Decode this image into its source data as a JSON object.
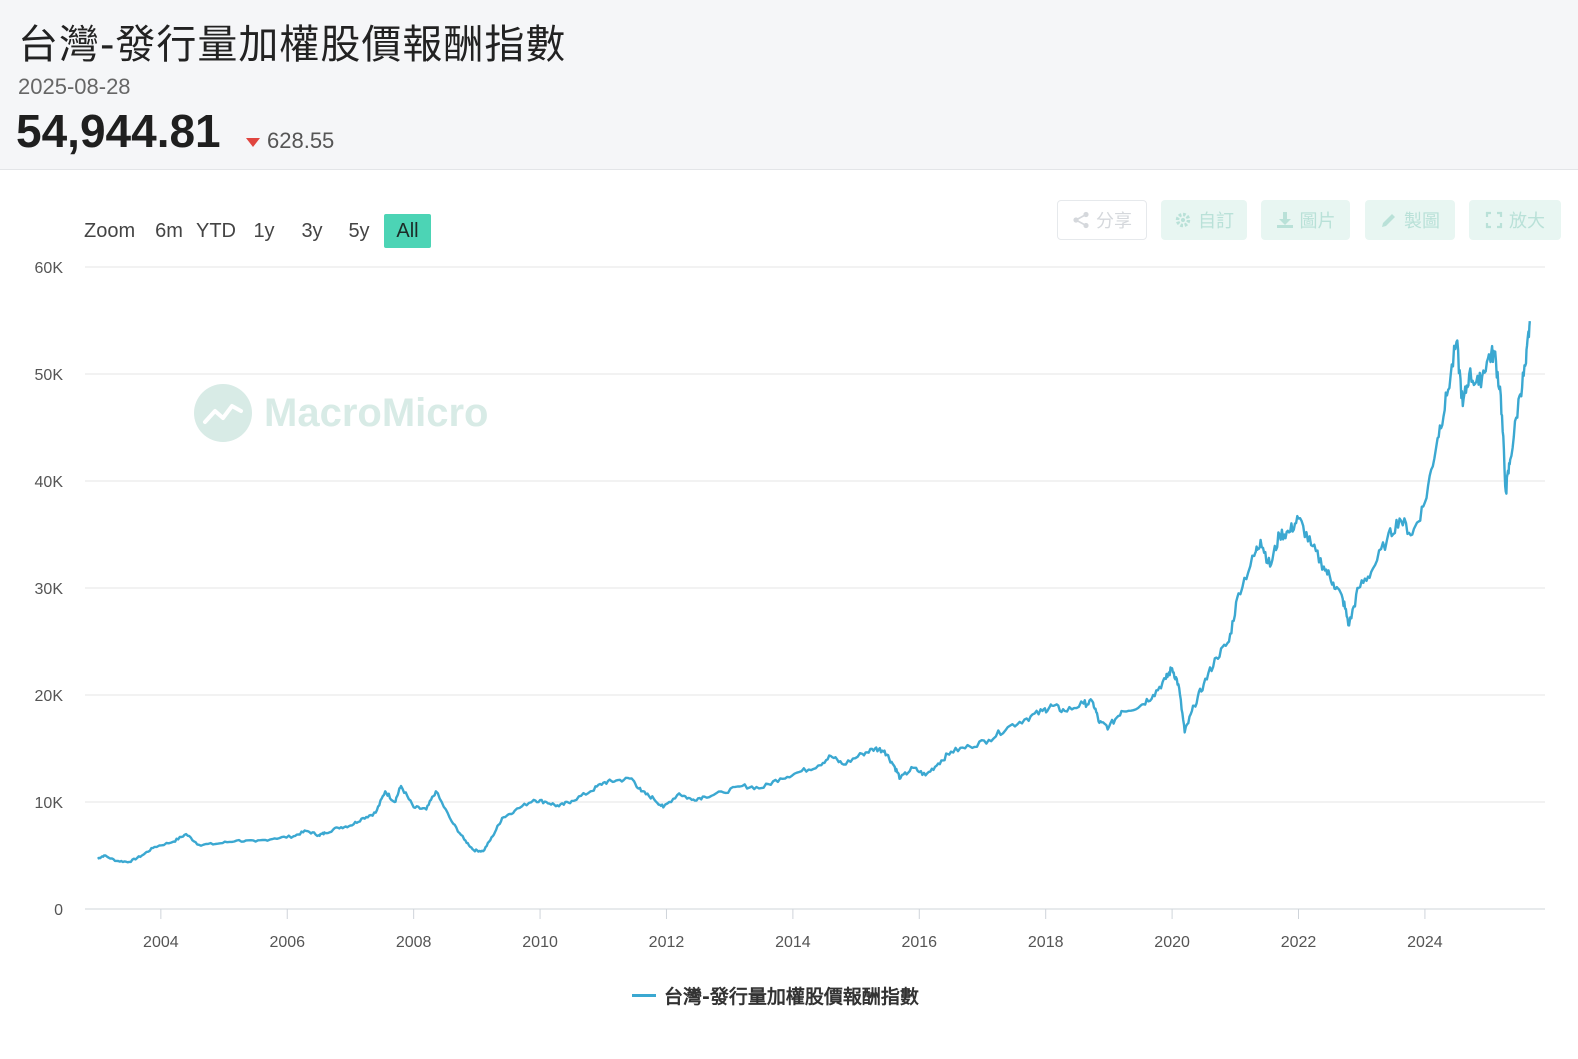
{
  "header": {
    "title": "台灣-發行量加權股價報酬指數",
    "date": "2025-08-28",
    "value": "54,944.81",
    "change": "628.55",
    "change_direction": "down"
  },
  "range_selector": {
    "zoom_label": "Zoom",
    "buttons": [
      "6m",
      "YTD",
      "1y",
      "3y",
      "5y",
      "All"
    ],
    "active": "All"
  },
  "toolbar": {
    "share": "分享",
    "customize": "自訂",
    "image": "圖片",
    "draw": "製圖",
    "enlarge": "放大"
  },
  "watermark": "MacroMicro",
  "colors": {
    "series": "#3ba8d1",
    "accent": "#4cd4b5",
    "down": "#e0453f"
  },
  "chart_data": {
    "type": "line",
    "title": "",
    "xlabel": "",
    "ylabel": "",
    "ylim": [
      0,
      60000
    ],
    "yticks": [
      0,
      10000,
      20000,
      30000,
      40000,
      50000,
      60000
    ],
    "ytick_labels": [
      "0",
      "10K",
      "20K",
      "30K",
      "40K",
      "50K",
      "60K"
    ],
    "xlim": [
      2002.8,
      2025.9
    ],
    "xticks": [
      2004,
      2006,
      2008,
      2010,
      2012,
      2014,
      2016,
      2018,
      2020,
      2022,
      2024
    ],
    "xtick_labels": [
      "2004",
      "2006",
      "2008",
      "2010",
      "2012",
      "2014",
      "2016",
      "2018",
      "2020",
      "2022",
      "2024"
    ],
    "grid": "horizontal",
    "legend": "bottom-center",
    "series": [
      {
        "name": "台灣-發行量加權股價報酬指數",
        "points": [
          [
            2003.0,
            4700
          ],
          [
            2003.1,
            5000
          ],
          [
            2003.3,
            4500
          ],
          [
            2003.5,
            4400
          ],
          [
            2003.7,
            5000
          ],
          [
            2003.9,
            5800
          ],
          [
            2004.2,
            6300
          ],
          [
            2004.4,
            7000
          ],
          [
            2004.6,
            6000
          ],
          [
            2004.9,
            6100
          ],
          [
            2005.2,
            6400
          ],
          [
            2005.5,
            6300
          ],
          [
            2005.8,
            6600
          ],
          [
            2006.1,
            6800
          ],
          [
            2006.3,
            7300
          ],
          [
            2006.5,
            6900
          ],
          [
            2006.6,
            7100
          ],
          [
            2006.8,
            7600
          ],
          [
            2007.0,
            7800
          ],
          [
            2007.2,
            8500
          ],
          [
            2007.4,
            9000
          ],
          [
            2007.55,
            11000
          ],
          [
            2007.7,
            10000
          ],
          [
            2007.8,
            11500
          ],
          [
            2008.0,
            9500
          ],
          [
            2008.2,
            9300
          ],
          [
            2008.35,
            11000
          ],
          [
            2008.6,
            8200
          ],
          [
            2008.8,
            6500
          ],
          [
            2008.95,
            5500
          ],
          [
            2009.1,
            5400
          ],
          [
            2009.25,
            6800
          ],
          [
            2009.4,
            8500
          ],
          [
            2009.6,
            9200
          ],
          [
            2009.9,
            10200
          ],
          [
            2010.1,
            10000
          ],
          [
            2010.3,
            9600
          ],
          [
            2010.5,
            10100
          ],
          [
            2010.8,
            11000
          ],
          [
            2011.0,
            11800
          ],
          [
            2011.2,
            12000
          ],
          [
            2011.45,
            12200
          ],
          [
            2011.6,
            11000
          ],
          [
            2011.8,
            10300
          ],
          [
            2011.95,
            9500
          ],
          [
            2012.2,
            10800
          ],
          [
            2012.4,
            10200
          ],
          [
            2012.6,
            10500
          ],
          [
            2012.9,
            10900
          ],
          [
            2013.2,
            11500
          ],
          [
            2013.5,
            11300
          ],
          [
            2013.8,
            12200
          ],
          [
            2014.1,
            12800
          ],
          [
            2014.4,
            13400
          ],
          [
            2014.6,
            14300
          ],
          [
            2014.8,
            13500
          ],
          [
            2015.1,
            14500
          ],
          [
            2015.3,
            15000
          ],
          [
            2015.45,
            14800
          ],
          [
            2015.6,
            13400
          ],
          [
            2015.7,
            12200
          ],
          [
            2015.9,
            13200
          ],
          [
            2016.1,
            12500
          ],
          [
            2016.3,
            13600
          ],
          [
            2016.5,
            14700
          ],
          [
            2016.8,
            15200
          ],
          [
            2017.1,
            15800
          ],
          [
            2017.4,
            17000
          ],
          [
            2017.7,
            17800
          ],
          [
            2017.95,
            18500
          ],
          [
            2018.1,
            19000
          ],
          [
            2018.3,
            18500
          ],
          [
            2018.6,
            19200
          ],
          [
            2018.75,
            19300
          ],
          [
            2018.85,
            17400
          ],
          [
            2019.0,
            17000
          ],
          [
            2019.2,
            18500
          ],
          [
            2019.5,
            19000
          ],
          [
            2019.7,
            20000
          ],
          [
            2019.9,
            21500
          ],
          [
            2020.0,
            22500
          ],
          [
            2020.1,
            21000
          ],
          [
            2020.2,
            16500
          ],
          [
            2020.35,
            19000
          ],
          [
            2020.5,
            21000
          ],
          [
            2020.7,
            23500
          ],
          [
            2020.9,
            25000
          ],
          [
            2021.05,
            29500
          ],
          [
            2021.3,
            33000
          ],
          [
            2021.4,
            34500
          ],
          [
            2021.55,
            32000
          ],
          [
            2021.7,
            35000
          ],
          [
            2021.85,
            35200
          ],
          [
            2022.0,
            36500
          ],
          [
            2022.2,
            34000
          ],
          [
            2022.4,
            32000
          ],
          [
            2022.55,
            30500
          ],
          [
            2022.7,
            29000
          ],
          [
            2022.8,
            26500
          ],
          [
            2022.95,
            30000
          ],
          [
            2023.15,
            31500
          ],
          [
            2023.4,
            34500
          ],
          [
            2023.6,
            36500
          ],
          [
            2023.8,
            35000
          ],
          [
            2024.0,
            38000
          ],
          [
            2024.2,
            44000
          ],
          [
            2024.35,
            48000
          ],
          [
            2024.5,
            53000
          ],
          [
            2024.6,
            47000
          ],
          [
            2024.7,
            50000
          ],
          [
            2024.85,
            49000
          ],
          [
            2025.0,
            51500
          ],
          [
            2025.1,
            52000
          ],
          [
            2025.2,
            48000
          ],
          [
            2025.28,
            39000
          ],
          [
            2025.35,
            42000
          ],
          [
            2025.5,
            48000
          ],
          [
            2025.6,
            51000
          ],
          [
            2025.66,
            54944.81
          ]
        ]
      }
    ]
  }
}
